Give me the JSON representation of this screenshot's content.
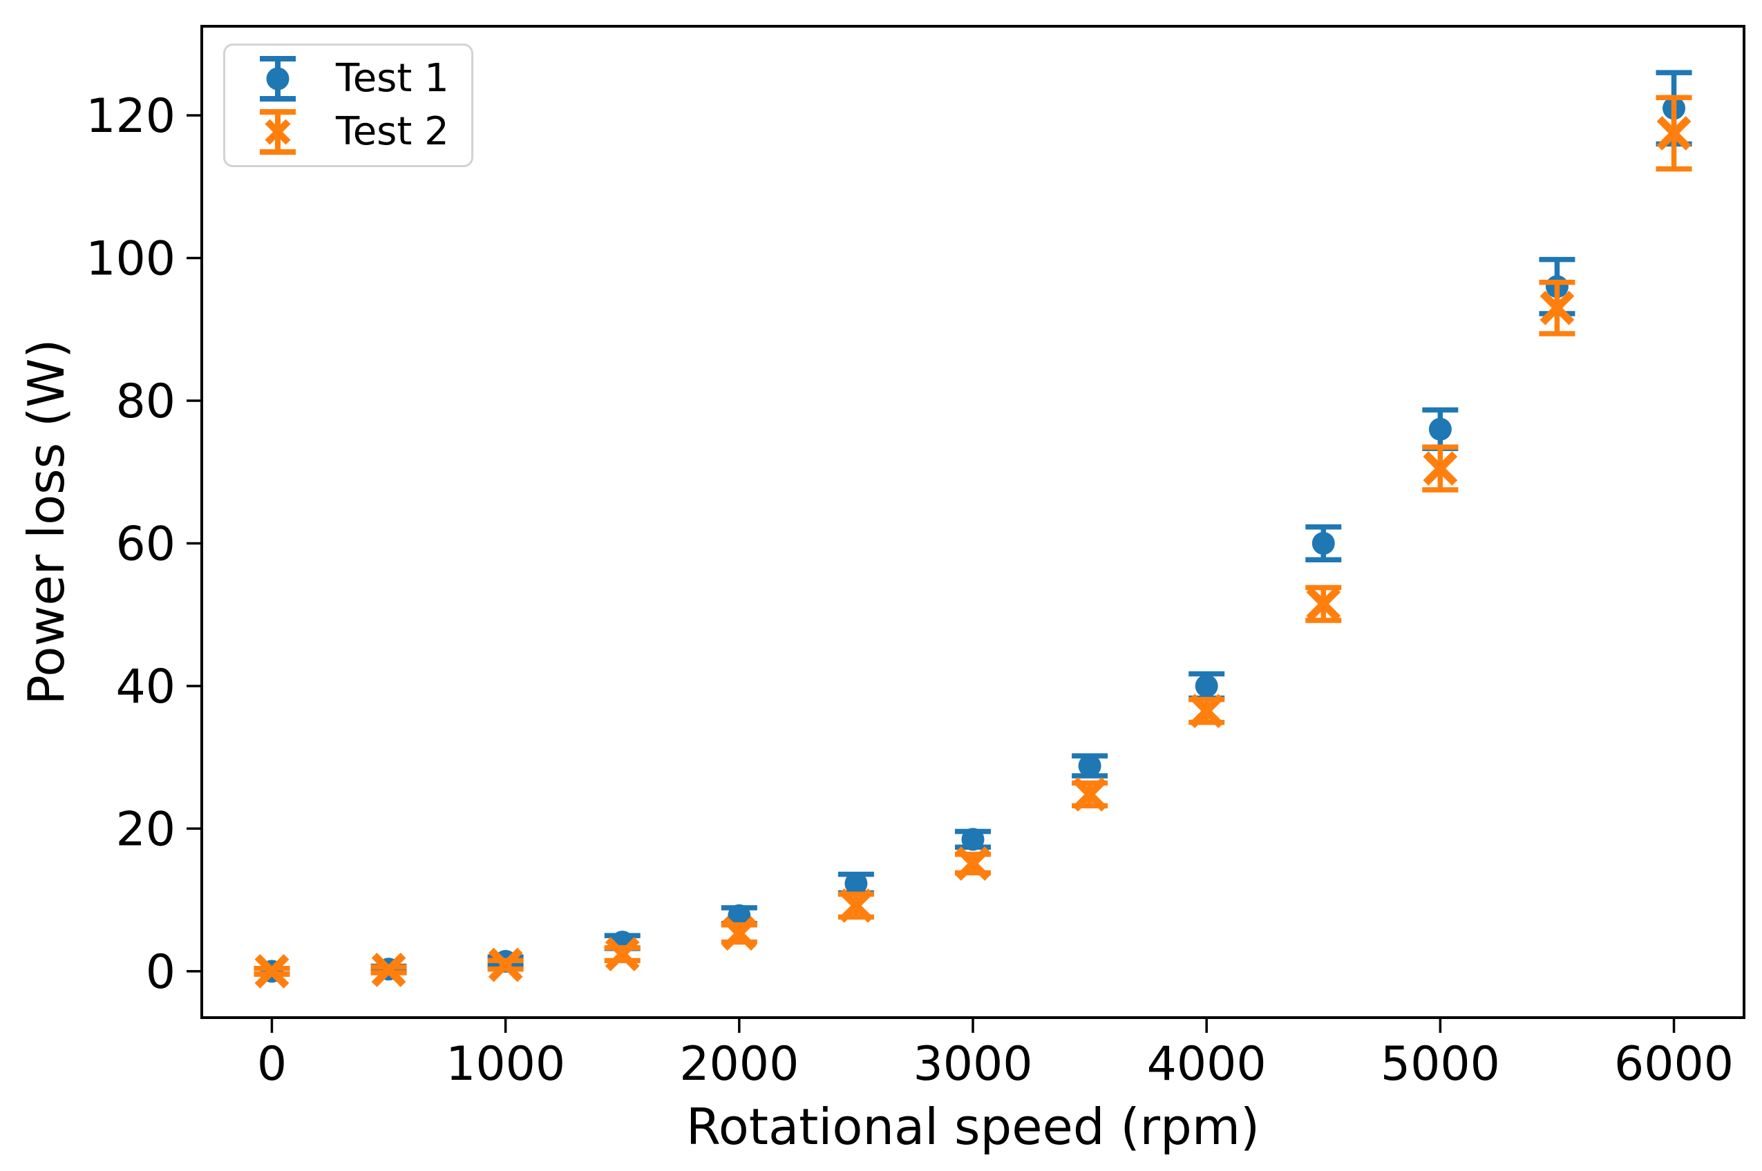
{
  "figure": {
    "background": "#ffffff"
  },
  "chart_data": {
    "type": "scatter",
    "title": "",
    "xlabel": "Rotational speed (rpm)",
    "ylabel": "Power loss (W)",
    "xlim": [
      -300,
      6300
    ],
    "ylim": [
      -6.5,
      132.5
    ],
    "x_ticks": [
      0,
      1000,
      2000,
      3000,
      4000,
      5000,
      6000
    ],
    "y_ticks": [
      0,
      20,
      40,
      60,
      80,
      100,
      120
    ],
    "grid": false,
    "legend_position": "upper left",
    "x": [
      0,
      500,
      1000,
      1500,
      2000,
      2500,
      3000,
      3500,
      4000,
      4500,
      5000,
      5500,
      6000
    ],
    "series": [
      {
        "name": "Test 1",
        "color": "#1f77b4",
        "marker": "circle",
        "values": [
          0.0,
          0.3,
          1.4,
          4.1,
          7.8,
          12.3,
          18.5,
          28.8,
          40.0,
          60.0,
          76.0,
          96.0,
          121.0
        ],
        "errors": [
          0.4,
          0.4,
          0.6,
          0.9,
          1.1,
          1.3,
          1.1,
          1.4,
          1.7,
          2.3,
          2.7,
          3.8,
          5.0
        ]
      },
      {
        "name": "Test 2",
        "color": "#ff7f0e",
        "marker": "x",
        "values": [
          0.0,
          0.2,
          0.9,
          2.4,
          5.3,
          9.2,
          15.1,
          24.8,
          36.5,
          51.5,
          70.5,
          93.0,
          117.5
        ],
        "errors": [
          0.4,
          0.4,
          0.6,
          0.9,
          1.2,
          1.6,
          1.3,
          1.6,
          1.6,
          2.3,
          3.0,
          3.6,
          5.0
        ]
      }
    ]
  }
}
